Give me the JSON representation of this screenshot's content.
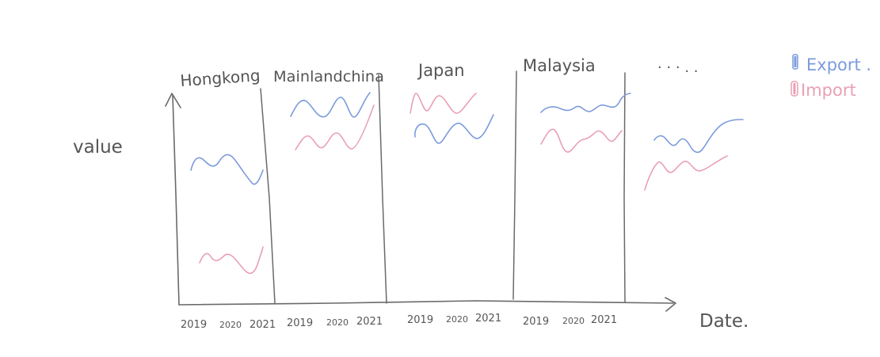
{
  "axes": {
    "y_label": "value",
    "x_label": "Date."
  },
  "legend": {
    "items": [
      {
        "label": "Export .",
        "color": "#7b9bdc"
      },
      {
        "label": "Import",
        "color": "#e8a0b4"
      }
    ]
  },
  "colors": {
    "export": "#7b9bdc",
    "import": "#e8a0b4",
    "ink": "#6a6a6a"
  },
  "panels": [
    {
      "title": "Hongkong",
      "years": [
        "2019",
        "2020",
        "2021"
      ]
    },
    {
      "title": "Mainlandchina",
      "years": [
        "2019",
        "2020",
        "2021"
      ]
    },
    {
      "title": "Japan",
      "years": [
        "2019",
        "2020",
        "2021"
      ]
    },
    {
      "title": "Malaysia",
      "years": [
        "2019",
        "2020",
        "2021"
      ]
    },
    {
      "title": "· · · . .",
      "years": []
    }
  ]
}
